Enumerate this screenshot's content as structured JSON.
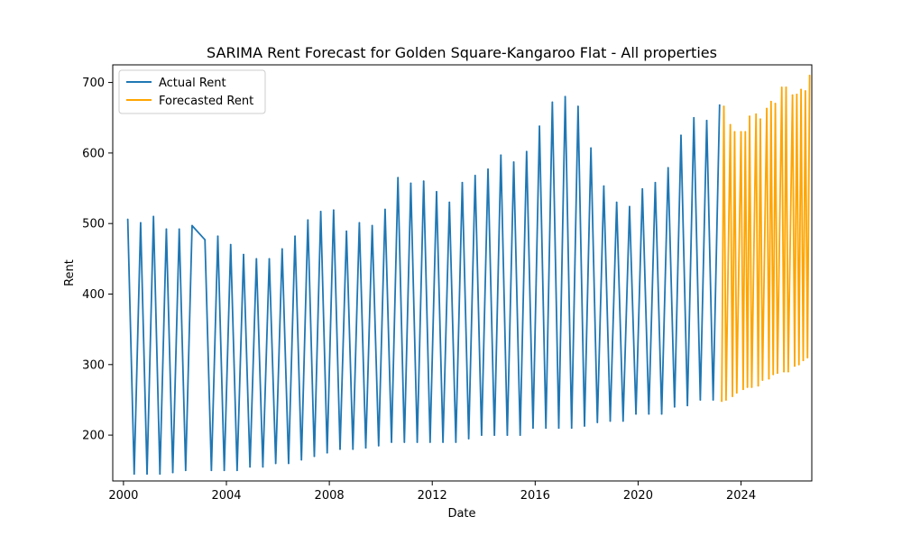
{
  "chart_data": {
    "type": "line",
    "title": "SARIMA Rent Forecast for Golden Square-Kangaroo Flat - All properties",
    "xlabel": "Date",
    "ylabel": "Rent",
    "xlim": [
      "1999-08-01",
      "2026-10-01"
    ],
    "ylim": [
      135,
      725
    ],
    "xticks": [
      "2000",
      "2004",
      "2008",
      "2012",
      "2016",
      "2020",
      "2024"
    ],
    "yticks": [
      200,
      300,
      400,
      500,
      600,
      700
    ],
    "grid": false,
    "legend_position": "upper-left",
    "series": [
      {
        "name": "Actual Rent",
        "color": "#1f77b4",
        "points": [
          [
            "2000-03-01",
            506
          ],
          [
            "2000-06-01",
            145
          ],
          [
            "2000-09-01",
            501
          ],
          [
            "2000-12-01",
            145
          ],
          [
            "2001-03-01",
            510
          ],
          [
            "2001-06-01",
            145
          ],
          [
            "2001-09-01",
            492
          ],
          [
            "2001-12-01",
            147
          ],
          [
            "2002-03-01",
            492
          ],
          [
            "2002-06-01",
            150
          ],
          [
            "2002-09-01",
            497
          ],
          [
            "2003-03-01",
            477
          ],
          [
            "2003-06-01",
            150
          ],
          [
            "2003-09-01",
            482
          ],
          [
            "2003-12-01",
            150
          ],
          [
            "2004-03-01",
            470
          ],
          [
            "2004-06-01",
            150
          ],
          [
            "2004-09-01",
            456
          ],
          [
            "2004-12-01",
            155
          ],
          [
            "2005-03-01",
            450
          ],
          [
            "2005-06-01",
            155
          ],
          [
            "2005-09-01",
            450
          ],
          [
            "2005-12-01",
            160
          ],
          [
            "2006-03-01",
            464
          ],
          [
            "2006-06-01",
            160
          ],
          [
            "2006-09-01",
            482
          ],
          [
            "2006-12-01",
            165
          ],
          [
            "2007-03-01",
            505
          ],
          [
            "2007-06-01",
            170
          ],
          [
            "2007-09-01",
            517
          ],
          [
            "2007-12-01",
            175
          ],
          [
            "2008-03-01",
            519
          ],
          [
            "2008-06-01",
            180
          ],
          [
            "2008-09-01",
            489
          ],
          [
            "2008-12-01",
            180
          ],
          [
            "2009-03-01",
            501
          ],
          [
            "2009-06-01",
            182
          ],
          [
            "2009-09-01",
            497
          ],
          [
            "2009-12-01",
            185
          ],
          [
            "2010-03-01",
            520
          ],
          [
            "2010-06-01",
            190
          ],
          [
            "2010-09-01",
            565
          ],
          [
            "2010-12-01",
            190
          ],
          [
            "2011-03-01",
            557
          ],
          [
            "2011-06-01",
            190
          ],
          [
            "2011-09-01",
            560
          ],
          [
            "2011-12-01",
            190
          ],
          [
            "2012-03-01",
            545
          ],
          [
            "2012-06-01",
            190
          ],
          [
            "2012-09-01",
            530
          ],
          [
            "2012-12-01",
            190
          ],
          [
            "2013-03-01",
            558
          ],
          [
            "2013-06-01",
            195
          ],
          [
            "2013-09-01",
            568
          ],
          [
            "2013-12-01",
            200
          ],
          [
            "2014-03-01",
            577
          ],
          [
            "2014-06-01",
            200
          ],
          [
            "2014-09-01",
            597
          ],
          [
            "2014-12-01",
            200
          ],
          [
            "2015-03-01",
            587
          ],
          [
            "2015-06-01",
            200
          ],
          [
            "2015-09-01",
            602
          ],
          [
            "2015-12-01",
            210
          ],
          [
            "2016-03-01",
            638
          ],
          [
            "2016-06-01",
            210
          ],
          [
            "2016-09-01",
            672
          ],
          [
            "2016-12-01",
            210
          ],
          [
            "2017-03-01",
            680
          ],
          [
            "2017-06-01",
            210
          ],
          [
            "2017-09-01",
            666
          ],
          [
            "2017-12-01",
            213
          ],
          [
            "2018-03-01",
            607
          ],
          [
            "2018-06-01",
            218
          ],
          [
            "2018-09-01",
            553
          ],
          [
            "2018-12-01",
            220
          ],
          [
            "2019-03-01",
            530
          ],
          [
            "2019-06-01",
            220
          ],
          [
            "2019-09-01",
            524
          ],
          [
            "2019-12-01",
            230
          ],
          [
            "2020-03-01",
            549
          ],
          [
            "2020-06-01",
            230
          ],
          [
            "2020-09-01",
            558
          ],
          [
            "2020-12-01",
            230
          ],
          [
            "2021-03-01",
            579
          ],
          [
            "2021-06-01",
            240
          ],
          [
            "2021-09-01",
            625
          ],
          [
            "2021-12-01",
            242
          ],
          [
            "2022-03-01",
            650
          ],
          [
            "2022-06-01",
            250
          ],
          [
            "2022-09-01",
            646
          ],
          [
            "2022-12-01",
            250
          ],
          [
            "2023-03-01",
            668
          ]
        ]
      },
      {
        "name": "Forecasted Rent",
        "color": "#ffa500",
        "points": [
          [
            "2023-04-01",
            248
          ],
          [
            "2023-05-01",
            666
          ],
          [
            "2023-06-01",
            250
          ],
          [
            "2023-08-01",
            640
          ],
          [
            "2023-09-01",
            255
          ],
          [
            "2023-10-01",
            630
          ],
          [
            "2023-11-01",
            260
          ],
          [
            "2024-01-01",
            630
          ],
          [
            "2024-02-01",
            265
          ],
          [
            "2024-03-01",
            630
          ],
          [
            "2024-04-01",
            268
          ],
          [
            "2024-05-01",
            652
          ],
          [
            "2024-06-01",
            268
          ],
          [
            "2024-08-01",
            655
          ],
          [
            "2024-09-01",
            270
          ],
          [
            "2024-10-01",
            648
          ],
          [
            "2024-11-01",
            278
          ],
          [
            "2025-01-01",
            663
          ],
          [
            "2025-02-01",
            280
          ],
          [
            "2025-03-01",
            673
          ],
          [
            "2025-04-01",
            286
          ],
          [
            "2025-05-01",
            670
          ],
          [
            "2025-06-01",
            288
          ],
          [
            "2025-08-01",
            693
          ],
          [
            "2025-09-01",
            290
          ],
          [
            "2025-10-01",
            693
          ],
          [
            "2025-11-01",
            290
          ],
          [
            "2026-01-01",
            682
          ],
          [
            "2026-02-01",
            298
          ],
          [
            "2026-03-01",
            683
          ],
          [
            "2026-04-01",
            300
          ],
          [
            "2026-05-01",
            690
          ],
          [
            "2026-06-01",
            306
          ],
          [
            "2026-07-01",
            688
          ],
          [
            "2026-08-01",
            310
          ],
          [
            "2026-09-01",
            710
          ]
        ]
      }
    ]
  }
}
